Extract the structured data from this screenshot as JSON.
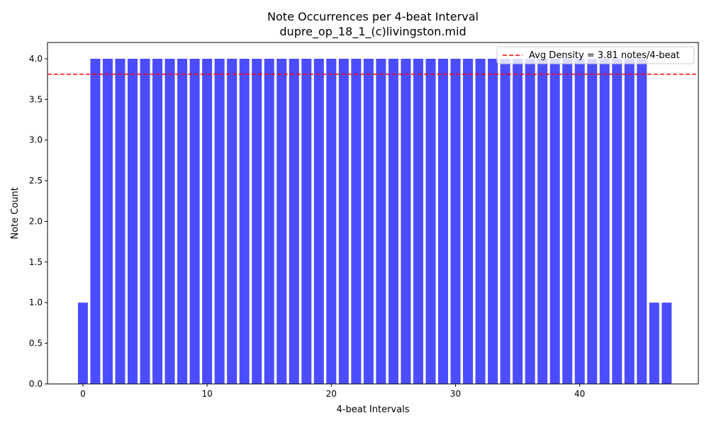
{
  "chart_data": {
    "type": "bar",
    "title": "Note Occurrences per 4-beat Interval",
    "subtitle": "dupre_op_18_1_(c)livingston.mid",
    "xlabel": "4-beat Intervals",
    "ylabel": "Note Count",
    "x": [
      0,
      1,
      2,
      3,
      4,
      5,
      6,
      7,
      8,
      9,
      10,
      11,
      12,
      13,
      14,
      15,
      16,
      17,
      18,
      19,
      20,
      21,
      22,
      23,
      24,
      25,
      26,
      27,
      28,
      29,
      30,
      31,
      32,
      33,
      34,
      35,
      36,
      37,
      38,
      39,
      40,
      41,
      42,
      43,
      44,
      45,
      46,
      47
    ],
    "values": [
      1,
      4,
      4,
      4,
      4,
      4,
      4,
      4,
      4,
      4,
      4,
      4,
      4,
      4,
      4,
      4,
      4,
      4,
      4,
      4,
      4,
      4,
      4,
      4,
      4,
      4,
      4,
      4,
      4,
      4,
      4,
      4,
      4,
      4,
      4,
      4,
      4,
      4,
      4,
      4,
      4,
      4,
      4,
      4,
      4,
      4,
      1,
      1
    ],
    "xlim": [
      -2.85,
      49.55
    ],
    "ylim": [
      0,
      4.2
    ],
    "xticks": [
      0,
      10,
      20,
      30,
      40
    ],
    "yticks": [
      0.0,
      0.5,
      1.0,
      1.5,
      2.0,
      2.5,
      3.0,
      3.5,
      4.0
    ],
    "bar_color": "#0000ff",
    "bar_opacity": 0.7,
    "reference_line": {
      "value": 3.81,
      "label": "Avg Density = 3.81 notes/4-beat",
      "color": "#ff0000",
      "style": "dashed"
    },
    "legend_position": "top-right",
    "grid": false
  }
}
